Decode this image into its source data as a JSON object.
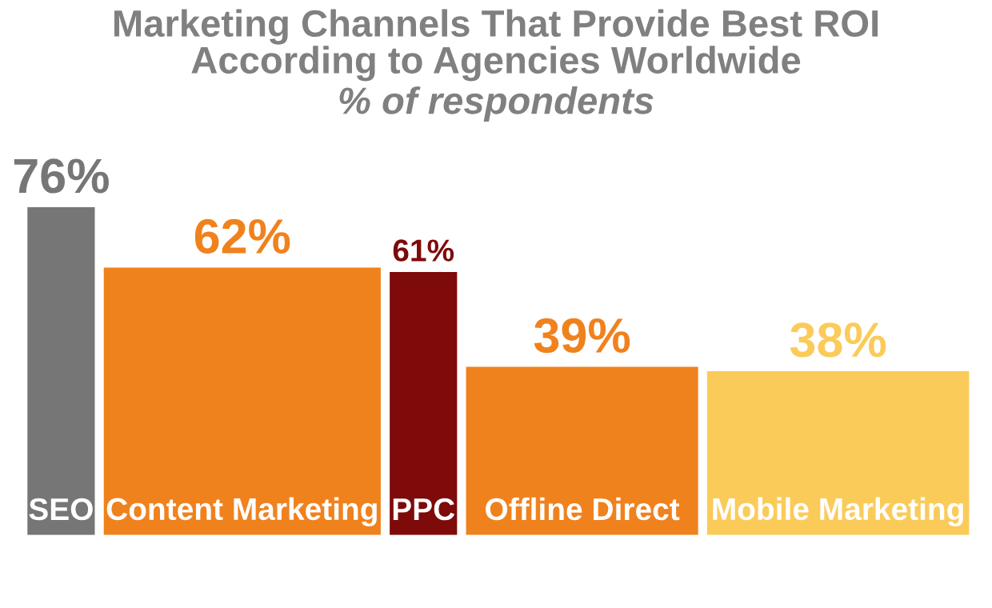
{
  "chart_data": {
    "type": "bar",
    "title": "Marketing Channels That Provide Best ROI\nAccording to Agencies Worldwide",
    "subtitle": "% of respondents",
    "categories": [
      "SEO",
      "Content Marketing",
      "PPC",
      "Offline Direct",
      "Mobile Marketing"
    ],
    "values": [
      76,
      62,
      61,
      39,
      38
    ],
    "colors": [
      "#767676",
      "#f0821e",
      "#7f0a0a",
      "#f0821e",
      "#fbcb5a"
    ],
    "value_labels": [
      "76%",
      "62%",
      "61%",
      "39%",
      "38%"
    ],
    "data_labels": true
  }
}
